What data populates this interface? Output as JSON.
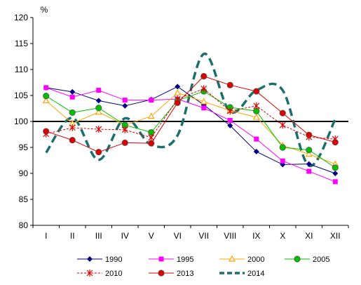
{
  "chart_data": {
    "type": "line",
    "title": "",
    "xlabel": "",
    "ylabel": "%",
    "ylim": [
      80,
      120
    ],
    "yticks": [
      80,
      85,
      90,
      95,
      100,
      105,
      110,
      115,
      120
    ],
    "reference_line": 100,
    "grid": false,
    "legend_position": "bottom",
    "categories": [
      "I",
      "II",
      "III",
      "IV",
      "V",
      "VI",
      "VII",
      "VIII",
      "IX",
      "X",
      "XI",
      "XII"
    ],
    "series": [
      {
        "name": "1990",
        "color": "#000080",
        "dash": "solid",
        "marker": "diamond",
        "values": [
          106.5,
          105.7,
          104.0,
          103.0,
          104.2,
          106.7,
          103.2,
          99.2,
          94.2,
          91.7,
          91.8,
          90.0
        ]
      },
      {
        "name": "1995",
        "color": "#ff00ff",
        "dash": "solid",
        "marker": "square",
        "values": [
          106.5,
          104.7,
          106.0,
          104.1,
          104.1,
          104.3,
          102.6,
          100.2,
          96.6,
          92.4,
          90.4,
          88.4
        ]
      },
      {
        "name": "2000",
        "color": "#ffa500",
        "dash": "solid",
        "marker": "triangle",
        "values": [
          104.0,
          99.6,
          101.8,
          99.3,
          101.0,
          105.5,
          103.8,
          102.1,
          100.8,
          95.4,
          93.7,
          91.8
        ]
      },
      {
        "name": "2005",
        "color": "#00c000",
        "dash": "solid",
        "marker": "circle",
        "values": [
          104.9,
          101.7,
          102.6,
          99.3,
          97.9,
          104.0,
          105.8,
          102.7,
          102.0,
          95.0,
          94.5,
          91.1
        ]
      },
      {
        "name": "2010",
        "color": "#dd0000",
        "dash": "dashed",
        "marker": "star",
        "values": [
          97.6,
          98.8,
          98.5,
          98.4,
          96.9,
          104.3,
          106.3,
          102.0,
          103.0,
          99.3,
          97.0,
          96.6
        ]
      },
      {
        "name": "2013",
        "color": "#dd0000",
        "dash": "solid",
        "marker": "circle",
        "values": [
          98.1,
          96.4,
          94.1,
          95.9,
          95.8,
          103.6,
          108.7,
          107.0,
          105.8,
          101.6,
          97.4,
          96.0
        ]
      },
      {
        "name": "2014",
        "color": "#1e6e6e",
        "dash": "thick-dashed",
        "marker": "none",
        "smooth": true,
        "values": [
          94.0,
          100.7,
          92.6,
          100.6,
          95.5,
          97.3,
          113.0,
          101.9,
          106.0,
          106.0,
          91.5,
          100.4
        ]
      }
    ]
  }
}
